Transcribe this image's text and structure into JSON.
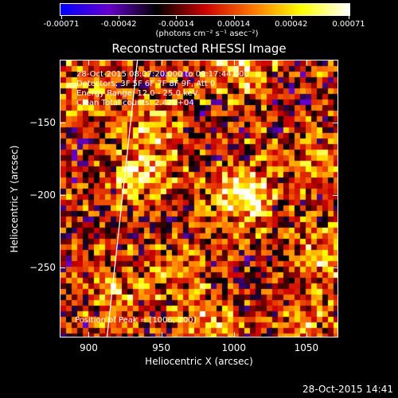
{
  "colorbar": {
    "tick_labels": [
      "-0.00071",
      "-0.00042",
      "-0.00014",
      "0.00014",
      "0.00042",
      "0.00071"
    ],
    "units": "(photons cm⁻² s⁻¹ asec⁻²)"
  },
  "info": {
    "time_range": "28-Oct-2015 08:07:20.000 to 08:17:44.000",
    "detectors": "Detectors: 3F 5F 6F 7F 8F 9F, Att 0",
    "energy": "Energy Range: 12.0 - 25.0 keV",
    "clean": "Clean     Total counts: 2.42E+04",
    "peak": "Position of Peak = [1006,-200]"
  },
  "footer": {
    "timestamp": "28-Oct-2015 14:41"
  },
  "chart_data": {
    "type": "heatmap",
    "title": "Reconstructed RHESSI Image",
    "xlabel": "Heliocentric X (arcsec)",
    "ylabel": "Heliocentric Y (arcsec)",
    "xlim": [
      880,
      1072
    ],
    "ylim": [
      -298,
      -107
    ],
    "x_ticks": [
      900,
      950,
      1000,
      1050
    ],
    "y_ticks": [
      -150,
      -200,
      -250
    ],
    "color_range": [
      -0.00071,
      0.00071
    ],
    "colormap": [
      "#0000ff",
      "#6600cc",
      "#000000",
      "#cc0000",
      "#ff7700",
      "#ffff00",
      "#ffffff"
    ],
    "sources": [
      {
        "x": 1006,
        "y": -200,
        "intensity": 0.00071
      },
      {
        "x": 935,
        "y": -185,
        "intensity": 0.00052
      },
      {
        "x": 1005,
        "y": -110,
        "intensity": 0.00048
      },
      {
        "x": 945,
        "y": -150,
        "intensity": 0.00038
      },
      {
        "x": 1060,
        "y": -240,
        "intensity": 0.00035
      },
      {
        "x": 1060,
        "y": -175,
        "intensity": 0.0003
      },
      {
        "x": 915,
        "y": -265,
        "intensity": 0.00034
      },
      {
        "x": 980,
        "y": -290,
        "intensity": 0.00036
      },
      {
        "x": 1050,
        "y": -285,
        "intensity": 0.0003
      },
      {
        "x": 960,
        "y": -255,
        "intensity": 0.00025
      },
      {
        "x": 895,
        "y": -125,
        "intensity": 0.0003
      }
    ],
    "limb": [
      {
        "x": 933,
        "y": -107
      },
      {
        "x": 912,
        "y": -298
      }
    ]
  }
}
